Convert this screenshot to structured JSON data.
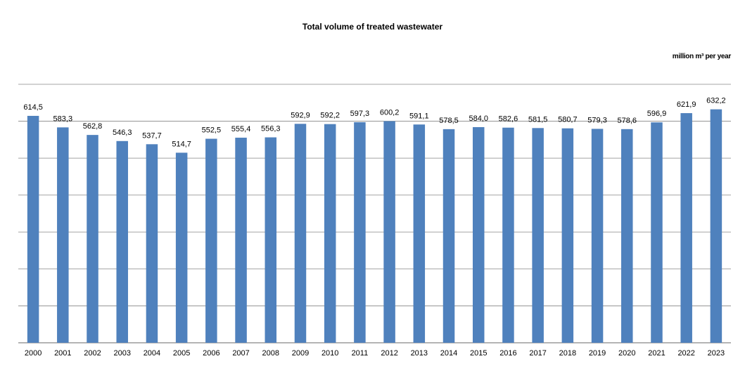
{
  "chart_data": {
    "type": "bar",
    "title": "Total volume of treated wastewater",
    "unit": "million m³ per year",
    "xlabel": "",
    "ylabel": "",
    "ylim": [
      0,
      700
    ],
    "grid": true,
    "bar_color": "#4f81bd",
    "grid_color": "#868686",
    "categories": [
      "2000",
      "2001",
      "2002",
      "2003",
      "2004",
      "2005",
      "2006",
      "2007",
      "2008",
      "2009",
      "2010",
      "2011",
      "2012",
      "2013",
      "2014",
      "2015",
      "2016",
      "2017",
      "2018",
      "2019",
      "2020",
      "2021",
      "2022",
      "2023"
    ],
    "values": [
      614.5,
      583.3,
      562.8,
      546.3,
      537.7,
      514.7,
      552.5,
      555.4,
      556.3,
      592.9,
      592.2,
      597.3,
      600.2,
      591.1,
      578.5,
      584.0,
      582.6,
      581.5,
      580.7,
      579.3,
      578.6,
      596.9,
      621.9,
      632.2
    ],
    "labels": [
      "614,5",
      "583,3",
      "562,8",
      "546,3",
      "537,7",
      "514,7",
      "552,5",
      "555,4",
      "556,3",
      "592,9",
      "592,2",
      "597,3",
      "600,2",
      "591,1",
      "578,5",
      "584,0",
      "582,6",
      "581,5",
      "580,7",
      "579,3",
      "578,6",
      "596,9",
      "621,9",
      "632,2"
    ]
  }
}
